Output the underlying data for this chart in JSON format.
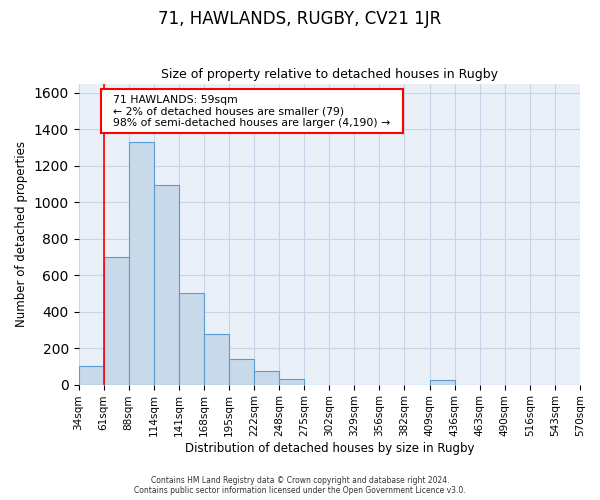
{
  "title": "71, HAWLANDS, RUGBY, CV21 1JR",
  "subtitle": "Size of property relative to detached houses in Rugby",
  "xlabel": "Distribution of detached houses by size in Rugby",
  "ylabel": "Number of detached properties",
  "bin_labels": [
    "34sqm",
    "61sqm",
    "88sqm",
    "114sqm",
    "141sqm",
    "168sqm",
    "195sqm",
    "222sqm",
    "248sqm",
    "275sqm",
    "302sqm",
    "329sqm",
    "356sqm",
    "382sqm",
    "409sqm",
    "436sqm",
    "463sqm",
    "490sqm",
    "516sqm",
    "543sqm",
    "570sqm"
  ],
  "bar_values": [
    100,
    700,
    1330,
    1095,
    500,
    275,
    140,
    75,
    30,
    0,
    0,
    0,
    0,
    0,
    25,
    0,
    0,
    0,
    0,
    0
  ],
  "bar_color": "#c8d9ea",
  "bar_edge_color": "#5b9bd5",
  "ylim": [
    0,
    1650
  ],
  "yticks": [
    0,
    200,
    400,
    600,
    800,
    1000,
    1200,
    1400,
    1600
  ],
  "marker_label": "71 HAWLANDS: 59sqm",
  "marker_line1": "← 2% of detached houses are smaller (79)",
  "marker_line2": "98% of semi-detached houses are larger (4,190) →",
  "annotation_box_color": "white",
  "annotation_border_color": "red",
  "vline_color": "red",
  "vline_x": 1.0,
  "footer1": "Contains HM Land Registry data © Crown copyright and database right 2024.",
  "footer2": "Contains public sector information licensed under the Open Government Licence v3.0."
}
